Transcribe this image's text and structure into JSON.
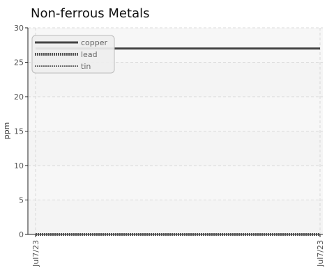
{
  "chart_data": {
    "type": "line",
    "title": "Non-ferrous Metals",
    "xlabel": "",
    "ylabel": "ppm",
    "ylim": [
      0,
      30
    ],
    "yticks": [
      0,
      5,
      10,
      15,
      20,
      25,
      30
    ],
    "xtick_labels": [
      "Jul7/23",
      "Jul7/23"
    ],
    "grid": true,
    "legend_position": "top-left",
    "series": [
      {
        "name": "copper",
        "values": [
          27,
          27
        ],
        "color": "#444444",
        "style": "solid"
      },
      {
        "name": "lead",
        "values": [
          0,
          0
        ],
        "color": "#555555",
        "style": "dotted-thick"
      },
      {
        "name": "tin",
        "values": [
          0,
          0
        ],
        "color": "#666666",
        "style": "dotted-thin"
      }
    ]
  }
}
